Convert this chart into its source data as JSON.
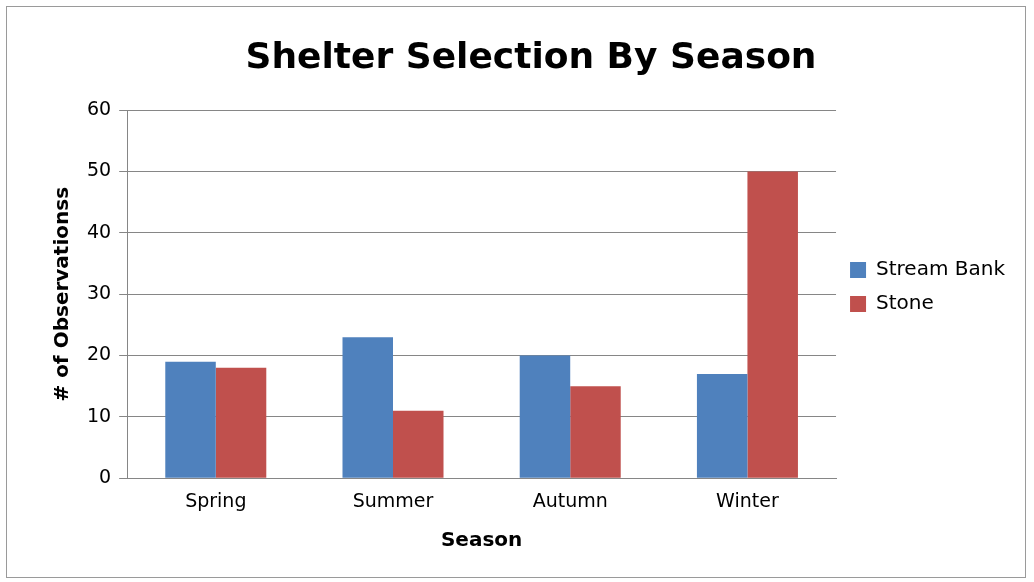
{
  "chart_data": {
    "type": "bar",
    "title": "Shelter Selection By Season",
    "xlabel": "Season",
    "ylabel": "# of Observationss",
    "categories": [
      "Spring",
      "Summer",
      "Autumn",
      "Winter"
    ],
    "series": [
      {
        "name": "Stream Bank",
        "color": "#4f81bd",
        "values": [
          19,
          23,
          20,
          17
        ]
      },
      {
        "name": "Stone",
        "color": "#c0504d",
        "values": [
          18,
          11,
          15,
          50
        ]
      }
    ],
    "ylim": [
      0,
      60
    ],
    "yticks": [
      0,
      10,
      20,
      30,
      40,
      50,
      60
    ],
    "grid": "y",
    "legend": "right"
  }
}
